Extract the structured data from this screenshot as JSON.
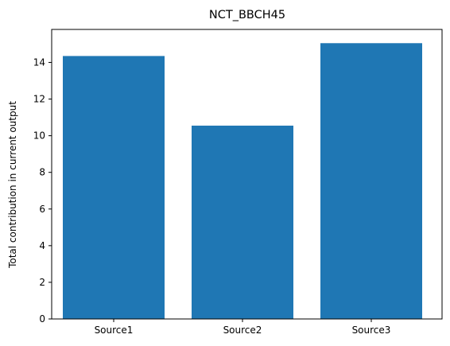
{
  "chart_data": {
    "type": "bar",
    "title": "NCT_BBCH45",
    "xlabel": "",
    "ylabel": "Total contribution in current output",
    "categories": [
      "Source1",
      "Source2",
      "Source3"
    ],
    "values": [
      14.35,
      10.55,
      15.05
    ],
    "ylim": [
      0,
      15.8
    ],
    "yticks": [
      "0",
      "2",
      "4",
      "6",
      "8",
      "10",
      "12",
      "14"
    ],
    "bar_color": "#1f77b4",
    "grid": false,
    "legend": "none"
  }
}
